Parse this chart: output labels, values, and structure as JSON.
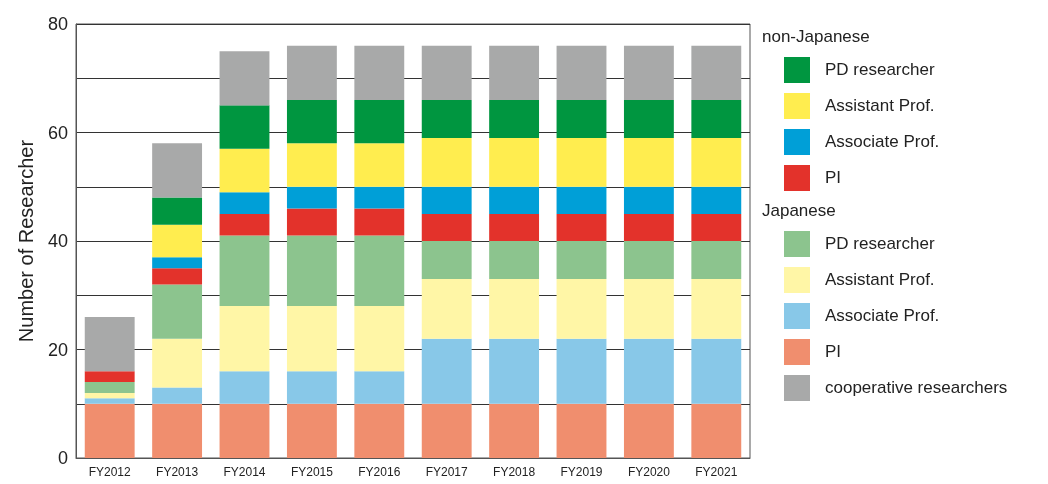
{
  "chart_data": {
    "type": "bar",
    "stacked": true,
    "ylabel": "Number of Researcher",
    "categories": [
      "FY2012",
      "FY2013",
      "FY2014",
      "FY2015",
      "FY2016",
      "FY2017",
      "FY2018",
      "FY2019",
      "FY2020",
      "FY2021"
    ],
    "series": [
      {
        "name": "PI",
        "color": "#f08e6e",
        "values": [
          10,
          10,
          10,
          10,
          10,
          10,
          10,
          10,
          10,
          10
        ]
      },
      {
        "name": "Associate Prof.",
        "color": "#88c8e8",
        "values": [
          1,
          3,
          6,
          6,
          6,
          12,
          12,
          12,
          12,
          12
        ]
      },
      {
        "name": "Assistant Prof.",
        "color": "#fff6a6",
        "values": [
          1,
          9,
          12,
          12,
          12,
          11,
          11,
          11,
          11,
          11
        ]
      },
      {
        "name": "PD researcher",
        "color": "#8cc48e",
        "values": [
          2,
          10,
          13,
          13,
          13,
          7,
          7,
          7,
          7,
          7
        ]
      },
      {
        "name": "PI",
        "color": "#e3322b",
        "values": [
          2,
          3,
          4,
          5,
          5,
          5,
          5,
          5,
          5,
          5
        ]
      },
      {
        "name": "Associate Prof.",
        "color": "#009fd7",
        "values": [
          0,
          2,
          4,
          4,
          4,
          5,
          5,
          5,
          5,
          5
        ]
      },
      {
        "name": "Assistant Prof.",
        "color": "#ffed4f",
        "values": [
          0,
          6,
          8,
          8,
          8,
          9,
          9,
          9,
          9,
          9
        ]
      },
      {
        "name": "PD researcher",
        "color": "#009640",
        "values": [
          0,
          5,
          8,
          8,
          8,
          7,
          7,
          7,
          7,
          7
        ]
      },
      {
        "name": "cooperative researchers",
        "color": "#a8a9a9",
        "values": [
          10,
          10,
          10,
          10,
          10,
          10,
          10,
          10,
          10,
          10
        ]
      }
    ],
    "annotations": [
      "non-Japanese",
      "Japanese"
    ],
    "ylim": [
      0,
      80
    ],
    "yticks": [
      0,
      {
        "value": 10,
        "label": null
      },
      20,
      {
        "value": 30,
        "label": null
      },
      40,
      {
        "value": 50,
        "label": null
      },
      60,
      {
        "value": 70,
        "label": null
      },
      80
    ],
    "grid": "y",
    "legend": "right"
  }
}
